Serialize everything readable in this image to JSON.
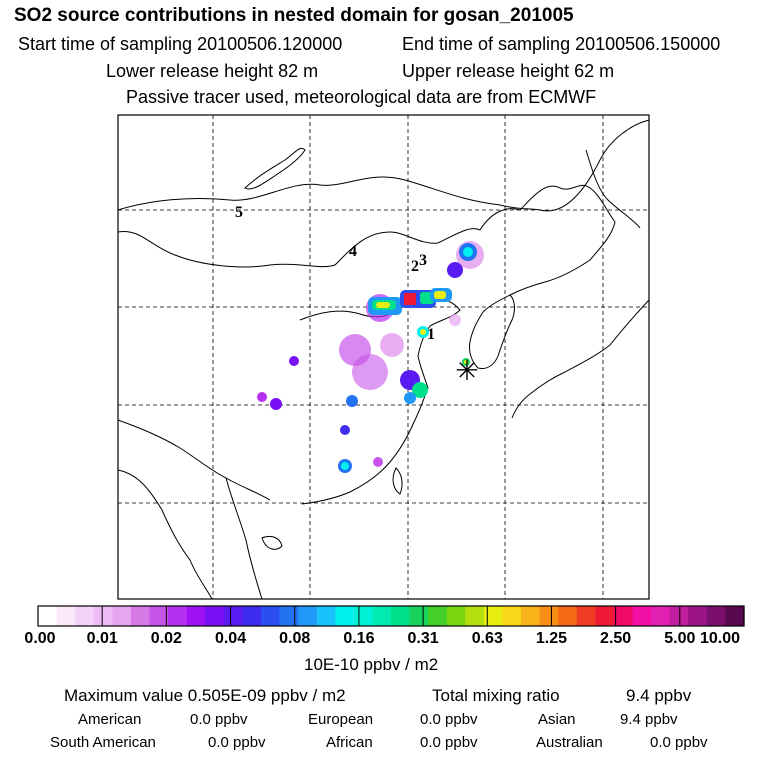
{
  "header": {
    "title": "SO2 source contributions in nested domain for gosan_201005",
    "start_label": "Start time of sampling 20100506.120000",
    "end_label": "End time of sampling 20100506.150000",
    "lower_label": "Lower release height   82 m",
    "upper_label": "Upper release height   62 m",
    "note": "Passive tracer used, meteorological data are from ECMWF"
  },
  "map": {
    "markers": [
      "1",
      "2",
      "3",
      "4",
      "5"
    ],
    "receptor_symbol": "✳"
  },
  "colorbar": {
    "colors": [
      "#ffffff",
      "#fbe9fb",
      "#f5d3f8",
      "#eebcf4",
      "#e6a6f1",
      "#d77ae6",
      "#c855ea",
      "#b530f1",
      "#9f12f6",
      "#7a10f6",
      "#5a1bf3",
      "#3e2cf0",
      "#2b4ef0",
      "#2273f2",
      "#1f98f6",
      "#18c2fa",
      "#00f0f0",
      "#00f2d6",
      "#00eab2",
      "#00e08c",
      "#18d25c",
      "#44cf28",
      "#7ad60e",
      "#b5e010",
      "#e9ee12",
      "#f9d81a",
      "#f9b21a",
      "#f78e16",
      "#f56916",
      "#f03c22",
      "#ee1a35",
      "#f00b6b",
      "#f00fa2",
      "#e020b0",
      "#c01e9c",
      "#9c1486",
      "#7a0f6c",
      "#57084e"
    ],
    "tick_labels": [
      "0.00",
      "0.01",
      "0.02",
      "0.04",
      "0.08",
      "0.16",
      "0.31",
      "0.63",
      "1.25",
      "2.50",
      "5.00",
      "10.00"
    ],
    "units": "10E-10 ppbv / m2"
  },
  "summary": {
    "max_label": "Maximum value  0.505E-09 ppbv / m2",
    "total_label": "Total mixing ratio",
    "total_value": "9.4 ppbv"
  },
  "regions": [
    {
      "name": "American",
      "value": "0.0 ppbv"
    },
    {
      "name": "European",
      "value": "0.0 ppbv"
    },
    {
      "name": "Asian",
      "value": "9.4 ppbv"
    },
    {
      "name": "South American",
      "value": "0.0 ppbv"
    },
    {
      "name": "African",
      "value": "0.0 ppbv"
    },
    {
      "name": "Australian",
      "value": "0.0 ppbv"
    }
  ]
}
